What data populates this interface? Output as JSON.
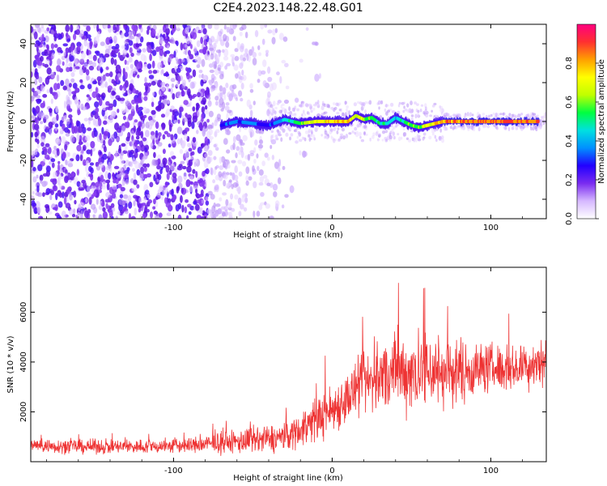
{
  "figure_title": "C2E4.2023.148.22.48.G01",
  "colors": {
    "snr_line": "#ee3333",
    "spectrogram_scatter": "#7a2cf0",
    "colormap": [
      "#ffffff",
      "#d6b8ff",
      "#7a2cf0",
      "#2200ff",
      "#0090ff",
      "#00e0e0",
      "#00ff40",
      "#c0ff00",
      "#ffff00",
      "#ffa000",
      "#ff3030",
      "#ff0080"
    ]
  },
  "chart_data": [
    {
      "type": "heatmap",
      "title": "",
      "xlabel": "Height of straight line (km)",
      "ylabel": "Frequency (Hz)",
      "xlim": [
        -190,
        135
      ],
      "ylim": [
        -50,
        50
      ],
      "xticks": [
        -100,
        0,
        100
      ],
      "yticks": [
        -40,
        -20,
        0,
        20,
        40
      ],
      "colorbar": {
        "label": "Normalized spectral amplitude",
        "range": [
          0,
          1
        ],
        "ticks": [
          0.0,
          0.2,
          0.4,
          0.6,
          0.8
        ]
      },
      "description_values": {
        "noise_extent_km": [
          -190,
          -35
        ],
        "signal_track": {
          "x": [
            -70,
            -60,
            -50,
            -40,
            -30,
            -20,
            -10,
            0,
            10,
            15,
            20,
            25,
            30,
            35,
            40,
            45,
            50,
            55,
            60,
            70,
            80,
            90,
            100,
            110,
            120,
            130
          ],
          "frequency": [
            -2,
            0,
            -1,
            -2,
            1,
            -1,
            0,
            0,
            0,
            3,
            1,
            2,
            -1,
            -1,
            2,
            0,
            -2,
            -3,
            -2,
            0,
            0,
            0,
            0,
            0,
            0,
            0
          ],
          "amplitude": [
            0.3,
            0.35,
            0.35,
            0.3,
            0.45,
            0.6,
            0.75,
            0.8,
            0.85,
            0.7,
            0.65,
            0.6,
            0.55,
            0.5,
            0.45,
            0.55,
            0.6,
            0.6,
            0.7,
            0.85,
            0.9,
            0.9,
            0.9,
            0.9,
            0.9,
            0.9
          ]
        }
      }
    },
    {
      "type": "line",
      "title": "",
      "xlabel": "Height of straight line (km)",
      "ylabel": "SNR (10 * v/v)",
      "xlim": [
        -190,
        135
      ],
      "ylim": [
        0,
        7800
      ],
      "xticks": [
        -100,
        0,
        100
      ],
      "yticks": [
        2000,
        4000,
        6000
      ],
      "series": [
        {
          "color": "#ee3333",
          "x": [
            -190,
            -170,
            -150,
            -130,
            -110,
            -90,
            -80,
            -70,
            -60,
            -50,
            -40,
            -30,
            -20,
            -10,
            0,
            10,
            20,
            30,
            40,
            50,
            60,
            70,
            80,
            90,
            100,
            110,
            120,
            130,
            135
          ],
          "mean": [
            650,
            620,
            600,
            600,
            620,
            650,
            700,
            750,
            800,
            850,
            900,
            1000,
            1300,
            1700,
            2100,
            2600,
            3100,
            3400,
            3600,
            3600,
            3700,
            3600,
            3600,
            3700,
            3800,
            3700,
            3800,
            4000,
            4100
          ],
          "spread": [
            350,
            350,
            350,
            350,
            350,
            400,
            450,
            500,
            600,
            700,
            700,
            700,
            900,
            1100,
            1200,
            1300,
            1500,
            1700,
            1900,
            2000,
            2000,
            1800,
            1600,
            1300,
            1200,
            1100,
            1100,
            1300,
            1100
          ]
        }
      ]
    }
  ]
}
